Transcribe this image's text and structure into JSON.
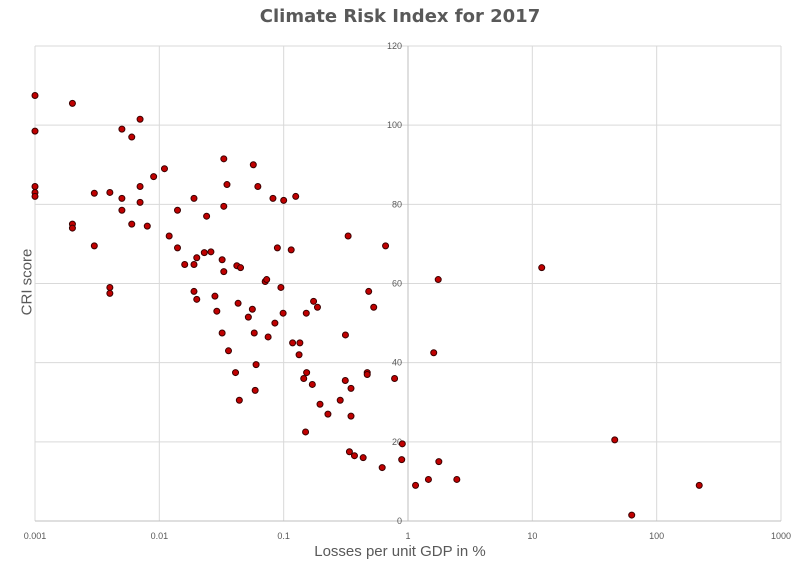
{
  "chart_data": {
    "type": "scatter",
    "title": "Climate Risk Index for 2017",
    "xlabel": "Losses per unit GDP in %",
    "ylabel": "CRI score",
    "x_scale": "log",
    "xlim": [
      0.001,
      1000
    ],
    "ylim": [
      0,
      120
    ],
    "x_ticks": [
      "0.001",
      "0.01",
      "0.1",
      "1",
      "10",
      "100",
      "1000"
    ],
    "y_ticks": [
      "0",
      "20",
      "40",
      "60",
      "80",
      "100",
      "120"
    ],
    "grid": true,
    "legend": "none",
    "marker_color": "#c00000",
    "marker_edge": "#3a0000",
    "points": [
      [
        0.001,
        107.5
      ],
      [
        0.001,
        98.5
      ],
      [
        0.001,
        84.5
      ],
      [
        0.001,
        83.0
      ],
      [
        0.001,
        82.0
      ],
      [
        0.002,
        105.5
      ],
      [
        0.002,
        75.0
      ],
      [
        0.002,
        74.0
      ],
      [
        0.003,
        82.8
      ],
      [
        0.003,
        69.5
      ],
      [
        0.004,
        83.0
      ],
      [
        0.004,
        59.0
      ],
      [
        0.004,
        57.5
      ],
      [
        0.005,
        99.0
      ],
      [
        0.005,
        81.5
      ],
      [
        0.005,
        78.5
      ],
      [
        0.006,
        97.0
      ],
      [
        0.006,
        75.0
      ],
      [
        0.007,
        101.5
      ],
      [
        0.007,
        84.5
      ],
      [
        0.007,
        80.5
      ],
      [
        0.008,
        74.5
      ],
      [
        0.009,
        87.0
      ],
      [
        0.011,
        89.0
      ],
      [
        0.012,
        72.0
      ],
      [
        0.014,
        78.5
      ],
      [
        0.014,
        69.0
      ],
      [
        0.016,
        64.8
      ],
      [
        0.019,
        81.5
      ],
      [
        0.019,
        64.8
      ],
      [
        0.019,
        58.0
      ],
      [
        0.02,
        66.5
      ],
      [
        0.02,
        56.0
      ],
      [
        0.023,
        67.8
      ],
      [
        0.024,
        77.0
      ],
      [
        0.026,
        68.0
      ],
      [
        0.028,
        56.8
      ],
      [
        0.029,
        53.0
      ],
      [
        0.032,
        66.0
      ],
      [
        0.032,
        47.5
      ],
      [
        0.033,
        91.5
      ],
      [
        0.033,
        79.5
      ],
      [
        0.033,
        63.0
      ],
      [
        0.035,
        85.0
      ],
      [
        0.036,
        43.0
      ],
      [
        0.041,
        37.5
      ],
      [
        0.042,
        64.5
      ],
      [
        0.043,
        55.0
      ],
      [
        0.044,
        30.5
      ],
      [
        0.045,
        64.0
      ],
      [
        0.052,
        51.5
      ],
      [
        0.056,
        53.5
      ],
      [
        0.057,
        90.0
      ],
      [
        0.058,
        47.5
      ],
      [
        0.059,
        33.0
      ],
      [
        0.06,
        39.5
      ],
      [
        0.062,
        84.5
      ],
      [
        0.071,
        60.5
      ],
      [
        0.073,
        61.0
      ],
      [
        0.075,
        46.5
      ],
      [
        0.082,
        81.5
      ],
      [
        0.085,
        50.0
      ],
      [
        0.089,
        69.0
      ],
      [
        0.095,
        59.0
      ],
      [
        0.099,
        52.5
      ],
      [
        0.1,
        81.0
      ],
      [
        0.115,
        68.5
      ],
      [
        0.118,
        45.0
      ],
      [
        0.125,
        82.0
      ],
      [
        0.133,
        42.0
      ],
      [
        0.135,
        45.0
      ],
      [
        0.145,
        36.0
      ],
      [
        0.15,
        22.5
      ],
      [
        0.152,
        52.5
      ],
      [
        0.153,
        37.5
      ],
      [
        0.17,
        34.5
      ],
      [
        0.174,
        55.5
      ],
      [
        0.187,
        54.0
      ],
      [
        0.196,
        29.5
      ],
      [
        0.227,
        27.0
      ],
      [
        0.285,
        30.5
      ],
      [
        0.313,
        35.5
      ],
      [
        0.314,
        47.0
      ],
      [
        0.33,
        72.0
      ],
      [
        0.338,
        17.5
      ],
      [
        0.348,
        33.5
      ],
      [
        0.348,
        26.5
      ],
      [
        0.371,
        16.5
      ],
      [
        0.436,
        16.0
      ],
      [
        0.47,
        37.5
      ],
      [
        0.47,
        37.0
      ],
      [
        0.483,
        58.0
      ],
      [
        0.53,
        54.0
      ],
      [
        0.62,
        13.5
      ],
      [
        0.66,
        69.5
      ],
      [
        0.78,
        36.0
      ],
      [
        0.89,
        15.5
      ],
      [
        0.9,
        19.5
      ],
      [
        1.15,
        9.0
      ],
      [
        1.46,
        10.5
      ],
      [
        1.61,
        42.5
      ],
      [
        1.75,
        61.0
      ],
      [
        1.77,
        15.0
      ],
      [
        2.47,
        10.5
      ],
      [
        11.9,
        64.0
      ],
      [
        46.0,
        20.5
      ],
      [
        63.0,
        1.5
      ],
      [
        220.0,
        9.0
      ]
    ]
  }
}
